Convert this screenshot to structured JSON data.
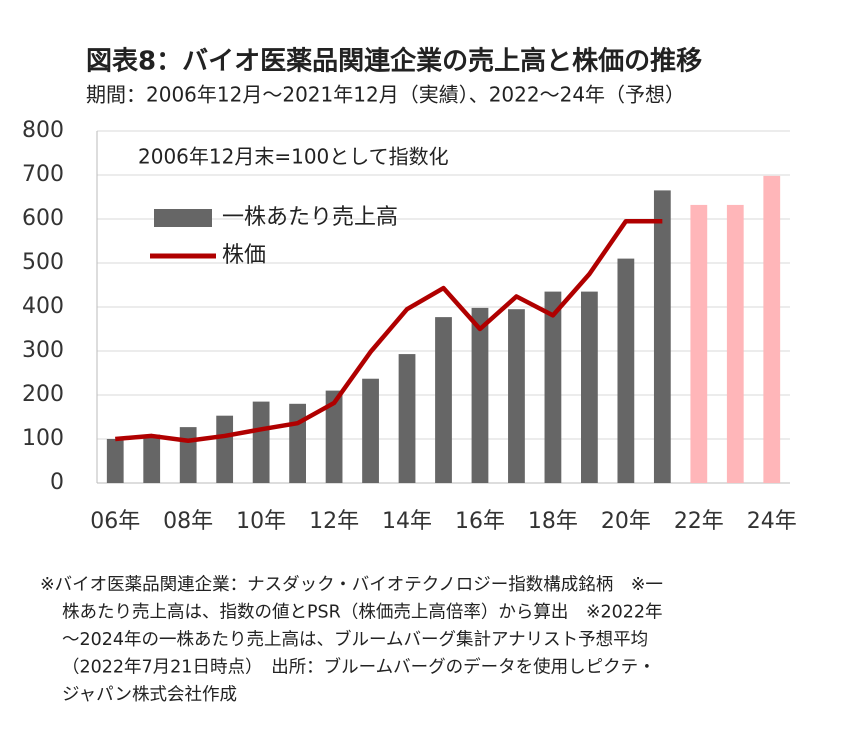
{
  "chart_data": {
    "type": "bar",
    "title": "図表8：バイオ医薬品関連企業の売上高と株価の推移",
    "subtitle": "期間：2006年12月～2021年12月（実績）、2022～24年（予想）",
    "annotation": "2006年12月末=100として指数化",
    "categories": [
      "06年",
      null,
      "08年",
      null,
      "10年",
      null,
      "12年",
      null,
      "14年",
      null,
      "16年",
      null,
      "18年",
      null,
      "20年",
      null,
      "22年",
      null,
      "24年"
    ],
    "series": [
      {
        "name": "一株あたり売上高",
        "type": "bar",
        "color": "#666666",
        "colors": [
          "#666666",
          "#666666",
          "#666666",
          "#666666",
          "#666666",
          "#666666",
          "#666666",
          "#666666",
          "#666666",
          "#666666",
          "#666666",
          "#666666",
          "#666666",
          "#666666",
          "#666666",
          "#666666",
          "#ffb6b9",
          "#ffb6b9",
          "#ffb6b9"
        ],
        "values": [
          100,
          110,
          127,
          153,
          185,
          180,
          210,
          237,
          293,
          377,
          398,
          395,
          435,
          435,
          510,
          665,
          632,
          632,
          698
        ]
      },
      {
        "name": "株価",
        "type": "line",
        "color": "#b00000",
        "values": [
          100,
          107,
          96,
          107,
          122,
          136,
          182,
          298,
          395,
          443,
          350,
          424,
          381,
          475,
          595,
          595,
          null,
          null,
          null
        ]
      }
    ],
    "ylim": [
      0,
      800
    ],
    "yticks": [
      0,
      100,
      200,
      300,
      400,
      500,
      600,
      700,
      800
    ],
    "grid": true,
    "legend": "upper left",
    "notes": [
      "※バイオ医薬品関連企業：ナスダック・バイオテクノロジー指数構成銘柄　※一",
      "株あたり売上高は、指数の値とPSR（株価売上高倍率）から算出　※2022年",
      "～2024年の一株あたり売上高は、ブルームバーグ集計アナリスト予想平均",
      "（2022年7月21日時点）　出所：ブルームバーグのデータを使用しピクテ・",
      "ジャパン株式会社作成"
    ]
  }
}
